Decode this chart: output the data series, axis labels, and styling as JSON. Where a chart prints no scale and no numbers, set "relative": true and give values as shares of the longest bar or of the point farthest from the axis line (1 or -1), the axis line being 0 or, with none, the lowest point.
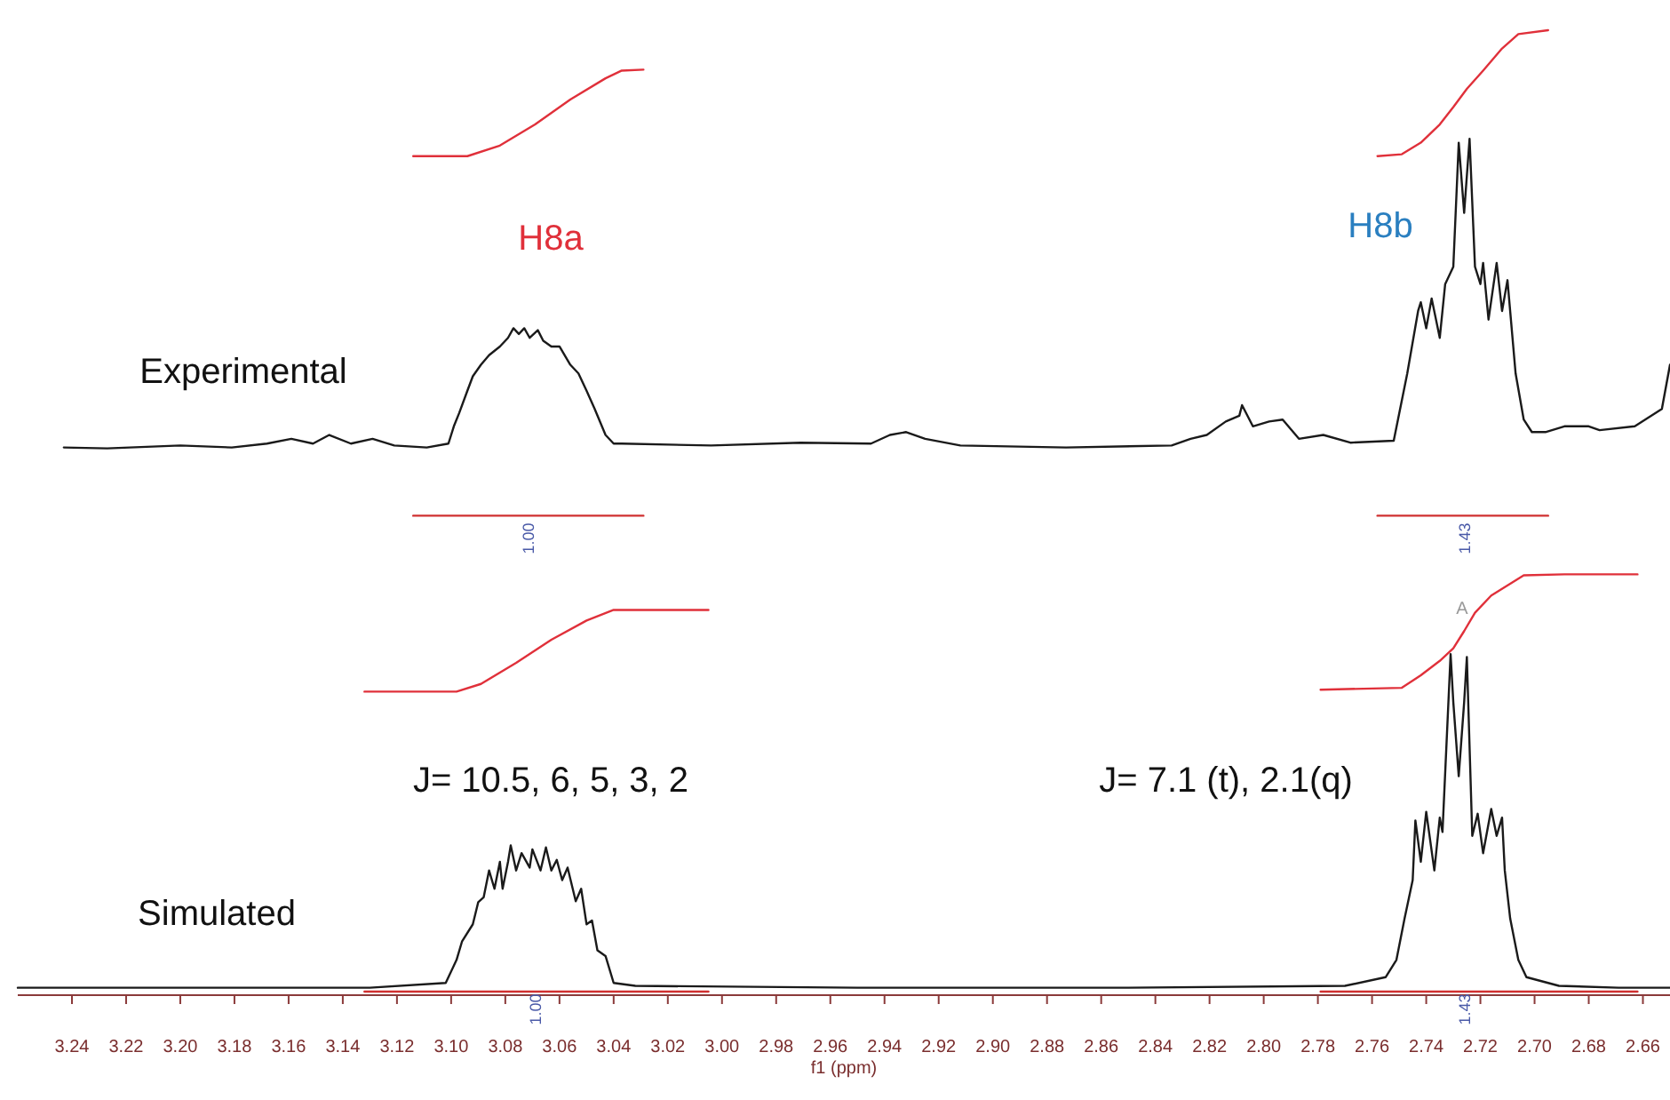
{
  "chart_data": {
    "type": "line",
    "relative": true,
    "xlim": [
      3.26,
      2.65
    ],
    "xlabel": "f1 (ppm)",
    "xticks": [
      {
        "value": 3.24,
        "label": "3.24"
      },
      {
        "value": 3.22,
        "label": "3.22"
      },
      {
        "value": 3.2,
        "label": "3.20"
      },
      {
        "value": 3.18,
        "label": "3.18"
      },
      {
        "value": 3.16,
        "label": "3.16"
      },
      {
        "value": 3.14,
        "label": "3.14"
      },
      {
        "value": 3.12,
        "label": "3.12"
      },
      {
        "value": 3.1,
        "label": "3.10"
      },
      {
        "value": 3.08,
        "label": "3.08"
      },
      {
        "value": 3.06,
        "label": "3.06"
      },
      {
        "value": 3.04,
        "label": "3.04"
      },
      {
        "value": 3.02,
        "label": "3.02"
      },
      {
        "value": 3,
        "label": "3.00"
      },
      {
        "value": 2.98,
        "label": "2.98"
      },
      {
        "value": 2.96,
        "label": "2.96"
      },
      {
        "value": 2.94,
        "label": "2.94"
      },
      {
        "value": 2.92,
        "label": "2.92"
      },
      {
        "value": 2.9,
        "label": "2.90"
      },
      {
        "value": 2.88,
        "label": "2.88"
      },
      {
        "value": 2.86,
        "label": "2.86"
      },
      {
        "value": 2.84,
        "label": "2.84"
      },
      {
        "value": 2.82,
        "label": "2.82"
      },
      {
        "value": 2.8,
        "label": "2.80"
      },
      {
        "value": 2.78,
        "label": "2.78"
      },
      {
        "value": 2.76,
        "label": "2.76"
      },
      {
        "value": 2.74,
        "label": "2.74"
      },
      {
        "value": 2.72,
        "label": "2.72"
      },
      {
        "value": 2.7,
        "label": "2.70"
      },
      {
        "value": 2.68,
        "label": "2.68"
      },
      {
        "value": 2.66,
        "label": "2.66"
      }
    ],
    "series": [
      {
        "color": "#1a1a1a",
        "x": [
          3.243,
          3.227,
          3.2,
          3.181,
          3.168,
          3.159,
          3.151,
          3.145,
          3.137,
          3.129,
          3.121,
          3.109,
          3.101,
          3.099,
          3.097,
          3.094,
          3.092,
          3.089,
          3.086,
          3.082,
          3.079,
          3.077,
          3.075,
          3.073,
          3.071,
          3.068,
          3.066,
          3.063,
          3.06,
          3.056,
          3.053,
          3.05,
          3.047,
          3.043,
          3.04,
          3.037,
          3.004,
          2.971,
          2.945,
          2.938,
          2.932,
          2.925,
          2.912,
          2.873,
          2.834,
          2.827,
          2.821,
          2.814,
          2.809,
          2.808,
          2.804,
          2.798,
          2.793,
          2.787,
          2.778,
          2.768,
          2.752,
          2.747,
          2.743,
          2.742,
          2.74,
          2.738,
          2.735,
          2.733,
          2.73,
          2.728,
          2.726,
          2.724,
          2.722,
          2.72,
          2.719,
          2.717,
          2.714,
          2.712,
          2.71,
          2.707,
          2.704,
          2.701,
          2.696,
          2.689,
          2.68,
          2.676,
          2.663,
          2.653,
          2.65
        ],
        "values": [
          0.566,
          0.565,
          0.568,
          0.566,
          0.57,
          0.575,
          0.57,
          0.579,
          0.57,
          0.575,
          0.568,
          0.566,
          0.57,
          0.588,
          0.602,
          0.625,
          0.64,
          0.652,
          0.662,
          0.671,
          0.68,
          0.69,
          0.684,
          0.69,
          0.68,
          0.688,
          0.677,
          0.671,
          0.671,
          0.652,
          0.643,
          0.625,
          0.606,
          0.579,
          0.57,
          0.57,
          0.568,
          0.571,
          0.57,
          0.579,
          0.582,
          0.575,
          0.568,
          0.566,
          0.568,
          0.575,
          0.579,
          0.593,
          0.599,
          0.61,
          0.588,
          0.593,
          0.595,
          0.575,
          0.579,
          0.571,
          0.573,
          0.643,
          0.708,
          0.717,
          0.69,
          0.721,
          0.68,
          0.736,
          0.754,
          0.883,
          0.81,
          0.887,
          0.754,
          0.736,
          0.758,
          0.699,
          0.758,
          0.708,
          0.74,
          0.643,
          0.595,
          0.582,
          0.582,
          0.588,
          0.588,
          0.584,
          0.588,
          0.606,
          0.652
        ]
      },
      {
        "color": "#e0303a",
        "x": [
          3.114,
          3.094,
          3.082,
          3.069,
          3.056,
          3.043,
          3.037,
          3.029
        ],
        "values": [
          0.869,
          0.869,
          0.88,
          0.902,
          0.928,
          0.95,
          0.958,
          0.959
        ]
      },
      {
        "color": "#e0303a",
        "x": [
          2.758,
          2.749,
          2.742,
          2.735,
          2.73,
          2.725,
          2.719,
          2.712,
          2.706,
          2.695
        ],
        "values": [
          0.869,
          0.871,
          0.883,
          0.902,
          0.92,
          0.939,
          0.958,
          0.981,
          0.996,
          1
        ]
      },
      {
        "color": "#d03030",
        "x": [
          3.114,
          3.029
        ],
        "values": [
          0.495,
          0.495
        ]
      },
      {
        "color": "#d03030",
        "x": [
          2.758,
          2.695
        ],
        "values": [
          0.495,
          0.495
        ]
      },
      {
        "color": "#1a1a1a",
        "x": [
          3.26,
          3.2,
          3.13,
          3.102,
          3.098,
          3.096,
          3.092,
          3.09,
          3.088,
          3.086,
          3.084,
          3.082,
          3.081,
          3.079,
          3.078,
          3.076,
          3.074,
          3.071,
          3.07,
          3.067,
          3.065,
          3.063,
          3.061,
          3.059,
          3.057,
          3.054,
          3.052,
          3.05,
          3.048,
          3.046,
          3.043,
          3.04,
          3.032,
          2.95,
          2.85,
          2.77,
          2.755,
          2.751,
          2.748,
          2.745,
          2.744,
          2.742,
          2.74,
          2.737,
          2.735,
          2.734,
          2.731,
          2.73,
          2.728,
          2.726,
          2.725,
          2.723,
          2.721,
          2.719,
          2.716,
          2.714,
          2.712,
          2.711,
          2.709,
          2.706,
          2.703,
          2.691,
          2.669,
          2.65
        ],
        "values": [
          0.004,
          0.004,
          0.004,
          0.009,
          0.033,
          0.052,
          0.07,
          0.093,
          0.098,
          0.126,
          0.107,
          0.135,
          0.107,
          0.135,
          0.152,
          0.126,
          0.144,
          0.129,
          0.148,
          0.126,
          0.15,
          0.126,
          0.137,
          0.116,
          0.129,
          0.094,
          0.107,
          0.07,
          0.074,
          0.043,
          0.037,
          0.009,
          0.006,
          0.004,
          0.004,
          0.006,
          0.015,
          0.033,
          0.076,
          0.116,
          0.178,
          0.135,
          0.187,
          0.126,
          0.181,
          0.166,
          0.351,
          0.301,
          0.224,
          0.301,
          0.348,
          0.162,
          0.185,
          0.144,
          0.19,
          0.162,
          0.181,
          0.126,
          0.076,
          0.033,
          0.015,
          0.006,
          0.004,
          0.004
        ]
      },
      {
        "color": "#e0303a",
        "x": [
          3.132,
          3.098,
          3.089,
          3.076,
          3.063,
          3.05,
          3.04,
          3.005
        ],
        "values": [
          0.312,
          0.312,
          0.32,
          0.342,
          0.366,
          0.386,
          0.397,
          0.397
        ]
      },
      {
        "color": "#e0303a",
        "x": [
          2.779,
          2.749,
          2.742,
          2.735,
          2.73,
          2.726,
          2.722,
          2.716,
          2.704,
          2.689,
          2.662
        ],
        "values": [
          0.314,
          0.316,
          0.329,
          0.344,
          0.357,
          0.375,
          0.394,
          0.412,
          0.433,
          0.434,
          0.434
        ]
      },
      {
        "color": "#d03030",
        "x": [
          3.132,
          3.005
        ],
        "values": [
          0,
          0
        ]
      },
      {
        "color": "#d03030",
        "x": [
          2.779,
          2.662
        ],
        "values": [
          0,
          0
        ]
      }
    ],
    "annotations": [
      "H8a",
      "H8b",
      "Experimental",
      "1.00",
      "1.43",
      "J= 10.5, 6, 5, 3, 2",
      "J= 7.1 (t), 2.1(q)",
      "Simulated",
      "A",
      "1.00",
      "1.43"
    ]
  }
}
